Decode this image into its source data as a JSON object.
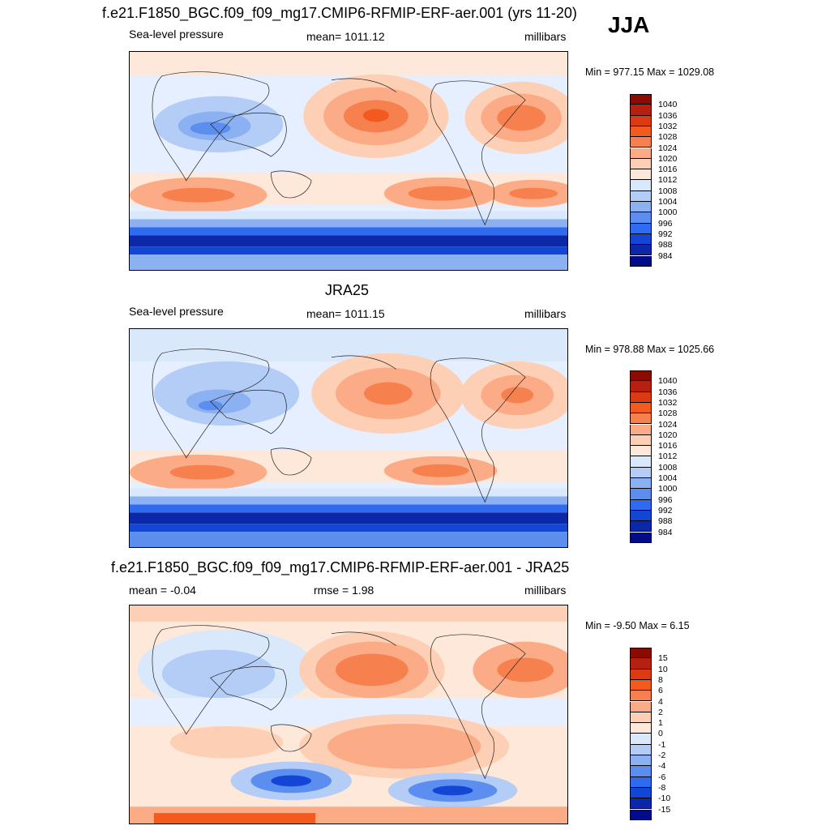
{
  "season": "JJA",
  "panels": [
    {
      "id": "model",
      "title": "f.e21.F1850_BGC.f09_f09_mg17.CMIP6-RFMIP-ERF-aer.001 (yrs 11-20)",
      "left_label": "Sea-level pressure",
      "center_label": "mean= 1011.12",
      "right_label": "millibars",
      "minmax": "Min = 977.15 Max = 1029.08"
    },
    {
      "id": "obs",
      "title": "JRA25",
      "left_label": "Sea-level pressure",
      "center_label": "mean= 1011.15",
      "right_label": "millibars",
      "minmax": "Min = 978.88 Max = 1025.66"
    },
    {
      "id": "diff",
      "title": "f.e21.F1850_BGC.f09_f09_mg17.CMIP6-RFMIP-ERF-aer.001 - JRA25",
      "left_label": "mean =  -0.04",
      "center_label": "rmse =   1.98",
      "right_label": "millibars",
      "minmax": "Min =  -9.50 Max =   6.15"
    }
  ],
  "colorbars": {
    "absolute": {
      "labels": [
        "1040",
        "1036",
        "1032",
        "1028",
        "1024",
        "1020",
        "1016",
        "1012",
        "1008",
        "1004",
        "1000",
        "996",
        "992",
        "988",
        "984"
      ],
      "colors": [
        "#8b0b00",
        "#b52010",
        "#dc3a12",
        "#f25a1e",
        "#f7804f",
        "#fbab85",
        "#fdd0b6",
        "#fde8d9",
        "#d9e8fb",
        "#b3cdf7",
        "#8cb1f3",
        "#5c8ef0",
        "#2f6bf0",
        "#1446d6",
        "#0a28a8",
        "#000c8a"
      ]
    },
    "difference": {
      "labels": [
        "15",
        "10",
        "8",
        "6",
        "4",
        "2",
        "1",
        "0",
        "-1",
        "-2",
        "-4",
        "-6",
        "-8",
        "-10",
        "-15"
      ],
      "colors": [
        "#8b0b00",
        "#b52010",
        "#dc3a12",
        "#f25a1e",
        "#f7804f",
        "#fbab85",
        "#fdd0b6",
        "#fde8d9",
        "#d9e8fb",
        "#b3cdf7",
        "#8cb1f3",
        "#5c8ef0",
        "#2f6bf0",
        "#1446d6",
        "#0a28a8",
        "#000c8a"
      ]
    }
  }
}
